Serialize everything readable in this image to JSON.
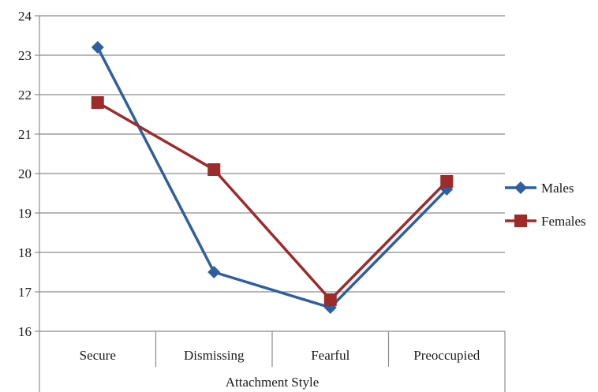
{
  "chart_data": {
    "type": "line",
    "title": "",
    "xlabel": "Attachment Style",
    "ylabel": "",
    "categories": [
      "Secure",
      "Dismissing",
      "Fearful",
      "Preoccupied"
    ],
    "ylim": [
      16,
      24
    ],
    "yticks": [
      16,
      17,
      18,
      19,
      20,
      21,
      22,
      23,
      24
    ],
    "grid": true,
    "legend_position": "right",
    "series": [
      {
        "name": "Males",
        "values": [
          23.2,
          17.5,
          16.6,
          19.6
        ],
        "color": "#2f5f9e",
        "marker": "diamond"
      },
      {
        "name": "Females",
        "values": [
          21.8,
          20.1,
          16.8,
          19.8
        ],
        "color": "#9e2a2a",
        "marker": "square"
      }
    ]
  }
}
